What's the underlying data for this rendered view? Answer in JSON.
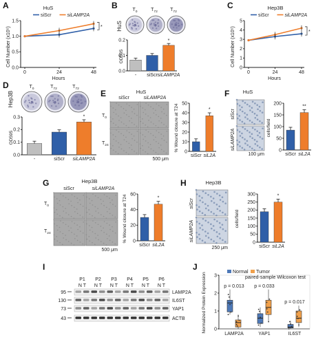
{
  "colors": {
    "siScr": "#2f5fa8",
    "siLAMP2A": "#ee7d2b",
    "control": "#bfbfbf",
    "dish": "#6c6c9a",
    "normal": "#4e79b8",
    "tumor": "#f0a04b",
    "micro": "#a9a9a9",
    "stain": "#7b8fb0"
  },
  "panels": {
    "A": {
      "letter": "A",
      "title": "HuS",
      "legend": [
        "siScr",
        "siLAMP2A"
      ],
      "star": "*"
    },
    "B": {
      "letter": "B",
      "side": "HuS",
      "tp": [
        "T0",
        "T72",
        "T72"
      ],
      "star": "*"
    },
    "C": {
      "letter": "C",
      "title": "Hep3B",
      "legend": [
        "siScr",
        "siLAMP2A"
      ],
      "star": "*"
    },
    "D": {
      "letter": "D",
      "side": "Hep3B",
      "tp": [
        "T0",
        "T72",
        "T72"
      ],
      "star": "*"
    },
    "E": {
      "letter": "E",
      "title": "HuS",
      "col1": "siScr",
      "col2": "siLAMP2A",
      "row1": "T0",
      "row2": "T24",
      "scale": "500 μm",
      "star": "*"
    },
    "F": {
      "letter": "F",
      "title": "HuS",
      "row1": "siScr",
      "row2": "siLAMP2A",
      "scale": "100 μm",
      "star": "**"
    },
    "G": {
      "letter": "G",
      "title": "Hep3B",
      "col1": "siScr",
      "col2": "siLAMP2A",
      "row1": "T0",
      "row2": "T24",
      "scale": "500 μm",
      "star": "*"
    },
    "H": {
      "letter": "H",
      "title": "Hep3B",
      "row1": "siScr",
      "row2": "siLAMP2A",
      "scale": "250 μm",
      "star": "*"
    },
    "I": {
      "letter": "I",
      "patients": [
        "P1",
        "P2",
        "P3",
        "P4",
        "P5",
        "P6"
      ],
      "nt": "N T",
      "mw": [
        "95",
        "130",
        "73",
        "43"
      ],
      "bands": [
        "LAMP2A",
        "IL6ST",
        "YAP1",
        "ACTB"
      ]
    },
    "J": {
      "letter": "J",
      "legend": [
        "Normal",
        "Tumor"
      ],
      "test": "paired-sample Wilcoxon test"
    }
  },
  "chart_data": [
    {
      "panel": "A",
      "type": "line",
      "title": "HuS",
      "xlabel": "Hours",
      "ylabel": "Cell Number (x10⁵)",
      "x": [
        0,
        24,
        48
      ],
      "ylim": [
        0,
        1.5
      ],
      "yticks": [
        "0.0",
        "0.5",
        "1.0",
        "1.5"
      ],
      "series": [
        {
          "name": "siScr",
          "values": [
            1.0,
            1.05,
            1.25
          ]
        },
        {
          "name": "siLAMP2A",
          "values": [
            1.0,
            1.18,
            1.4
          ]
        }
      ]
    },
    {
      "panel": "B",
      "type": "bar",
      "ylabel": "OD595",
      "categories": [
        "-",
        "siScr",
        "siLAMP2A"
      ],
      "values": [
        0.07,
        0.1,
        0.165
      ],
      "ylim": [
        0,
        0.2
      ],
      "yticks": [
        "0.0",
        "0.1",
        "0.2"
      ]
    },
    {
      "panel": "C",
      "type": "line",
      "title": "Hep3B",
      "xlabel": "Hours",
      "ylabel": "Cell Number (x10⁵)",
      "x": [
        0,
        24,
        48
      ],
      "ylim": [
        0,
        5
      ],
      "yticks": [
        "0",
        "1",
        "2",
        "3",
        "4",
        "5"
      ],
      "series": [
        {
          "name": "siScr",
          "values": [
            2.9,
            3.3,
            3.6
          ]
        },
        {
          "name": "siLAMP2A",
          "values": [
            2.9,
            3.5,
            4.2
          ]
        }
      ]
    },
    {
      "panel": "D",
      "type": "bar",
      "ylabel": "OD595",
      "categories": [
        "-",
        "siScr",
        "siLAMP2A"
      ],
      "values": [
        0.09,
        0.18,
        0.26
      ],
      "ylim": [
        0,
        0.3
      ],
      "yticks": [
        "0.0",
        "0.1",
        "0.2",
        "0.3"
      ]
    },
    {
      "panel": "E",
      "type": "bar",
      "ylabel": "% Wound closure at T24",
      "categories": [
        "siScr",
        "siL2A"
      ],
      "values": [
        10,
        37
      ],
      "ylim": [
        0,
        50
      ],
      "yticks": [
        "0",
        "10",
        "20",
        "30",
        "40",
        "50"
      ]
    },
    {
      "panel": "F",
      "type": "bar",
      "ylabel": "cells/field",
      "categories": [
        "siScr",
        "siL2A"
      ],
      "values": [
        85,
        160
      ],
      "ylim": [
        0,
        200
      ],
      "yticks": [
        "0",
        "50",
        "100",
        "150",
        "200"
      ]
    },
    {
      "panel": "G",
      "type": "bar",
      "ylabel": "% Wound closure at T24",
      "categories": [
        "siScr",
        "siL2A"
      ],
      "values": [
        30,
        47
      ],
      "ylim": [
        0,
        60
      ],
      "yticks": [
        "0",
        "20",
        "40",
        "60"
      ]
    },
    {
      "panel": "H",
      "type": "bar",
      "ylabel": "cells/field",
      "categories": [
        "siScr",
        "siL2A"
      ],
      "values": [
        190,
        250
      ],
      "ylim": [
        0,
        300
      ],
      "yticks": [
        "0",
        "50",
        "100",
        "150",
        "200",
        "250",
        "300"
      ]
    },
    {
      "panel": "J",
      "type": "box",
      "ylabel": "Normalized Protein Expression",
      "categories": [
        "LAMP2A",
        "YAP1",
        "IL6ST"
      ],
      "ylim": [
        0,
        3
      ],
      "yticks": [
        "0",
        "1",
        "2",
        "3"
      ],
      "pvalues": [
        "p = 0.013",
        "p = 0.033",
        "p = 0.017"
      ],
      "series": [
        {
          "name": "Normal",
          "boxes": [
            {
              "q1": 0.95,
              "median": 1.45,
              "q3": 1.6,
              "min": 0.8,
              "max": 2.2
            },
            {
              "q1": 0.3,
              "median": 0.6,
              "q3": 0.85,
              "min": 0.1,
              "max": 1.2
            },
            {
              "q1": 0.05,
              "median": 0.1,
              "q3": 0.25,
              "min": 0.0,
              "max": 0.45
            }
          ]
        },
        {
          "name": "Tumor",
          "boxes": [
            {
              "q1": 0.1,
              "median": 0.35,
              "q3": 0.5,
              "min": 0.0,
              "max": 0.8
            },
            {
              "q1": 0.8,
              "median": 1.2,
              "q3": 1.6,
              "min": 0.4,
              "max": 2.2
            },
            {
              "q1": 0.35,
              "median": 0.6,
              "q3": 1.0,
              "min": 0.1,
              "max": 1.3
            }
          ]
        }
      ]
    }
  ]
}
